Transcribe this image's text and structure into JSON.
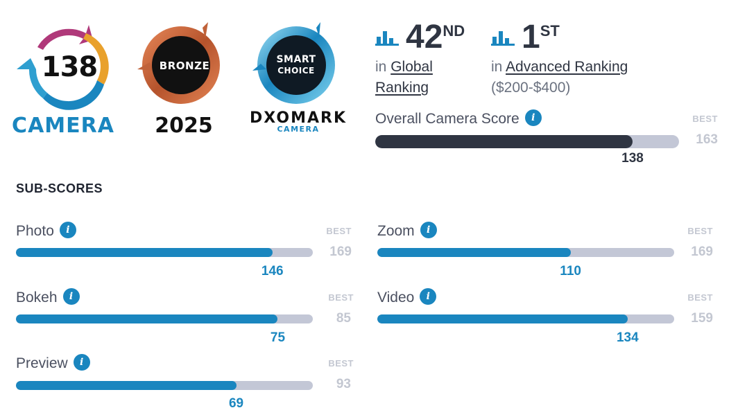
{
  "badges": {
    "camera": {
      "score": "138",
      "label": "CAMERA"
    },
    "bronze": {
      "label": "BRONZE",
      "year": "2025"
    },
    "smart": {
      "line1": "SMART",
      "line2": "CHOICE",
      "brand": "DXOMARK",
      "brand_sub": "CAMERA"
    }
  },
  "rankings": {
    "global": {
      "number": "42",
      "suffix": "ND",
      "prefix": "in",
      "link": "Global Ranking"
    },
    "advanced": {
      "number": "1",
      "suffix": "ST",
      "prefix": "in",
      "link": "Advanced Ranking",
      "range": "($200-$400)"
    }
  },
  "overall": {
    "label": "Overall Camera Score",
    "best_label": "BEST",
    "best": "163",
    "value": "138",
    "fraction": 0.847
  },
  "subscores_title": "SUB-SCORES",
  "subscores": {
    "photo": {
      "label": "Photo",
      "best_label": "BEST",
      "best": "169",
      "value": "146",
      "fraction": 0.864
    },
    "bokeh": {
      "label": "Bokeh",
      "best_label": "BEST",
      "best": "85",
      "value": "75",
      "fraction": 0.882
    },
    "preview": {
      "label": "Preview",
      "best_label": "BEST",
      "best": "93",
      "value": "69",
      "fraction": 0.742
    },
    "zoom": {
      "label": "Zoom",
      "best_label": "BEST",
      "best": "169",
      "value": "110",
      "fraction": 0.651
    },
    "video": {
      "label": "Video",
      "best_label": "BEST",
      "best": "159",
      "value": "134",
      "fraction": 0.843
    }
  },
  "colors": {
    "accent": "#1a86bf",
    "dark_fill": "#2f3542",
    "track": "#c3c7d6",
    "best": "#c3c7d1"
  }
}
